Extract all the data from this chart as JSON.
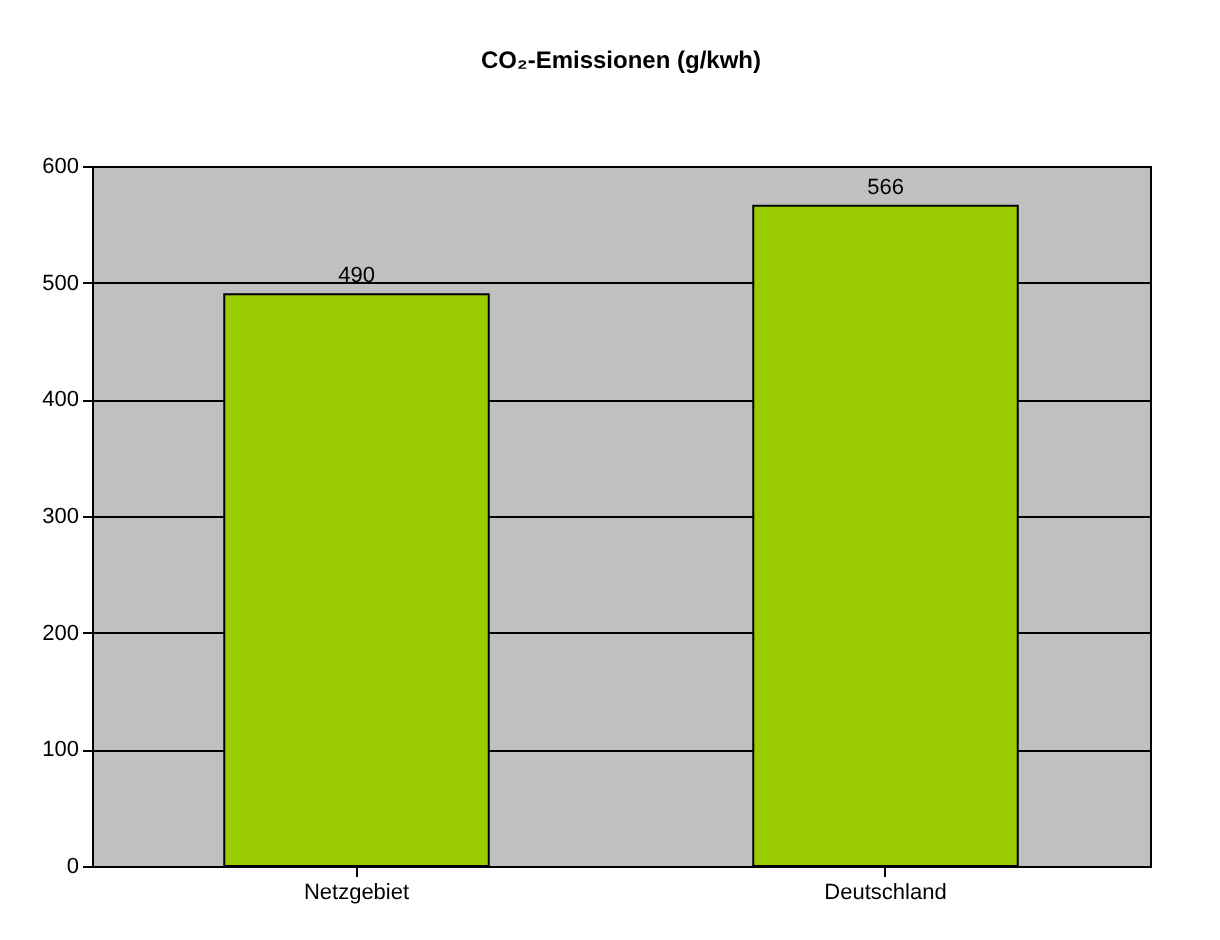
{
  "chart_data": {
    "type": "bar",
    "title": "CO₂-Emissionen (g/kwh)",
    "categories": [
      "Netzgebiet",
      "Deutschland"
    ],
    "series": [
      {
        "color": "#99cc00",
        "values": [
          490,
          566
        ]
      }
    ],
    "ylim": [
      0,
      600
    ],
    "yticks": [
      0,
      100,
      200,
      300,
      400,
      500,
      600
    ],
    "grid": "y",
    "data_labels": true
  }
}
